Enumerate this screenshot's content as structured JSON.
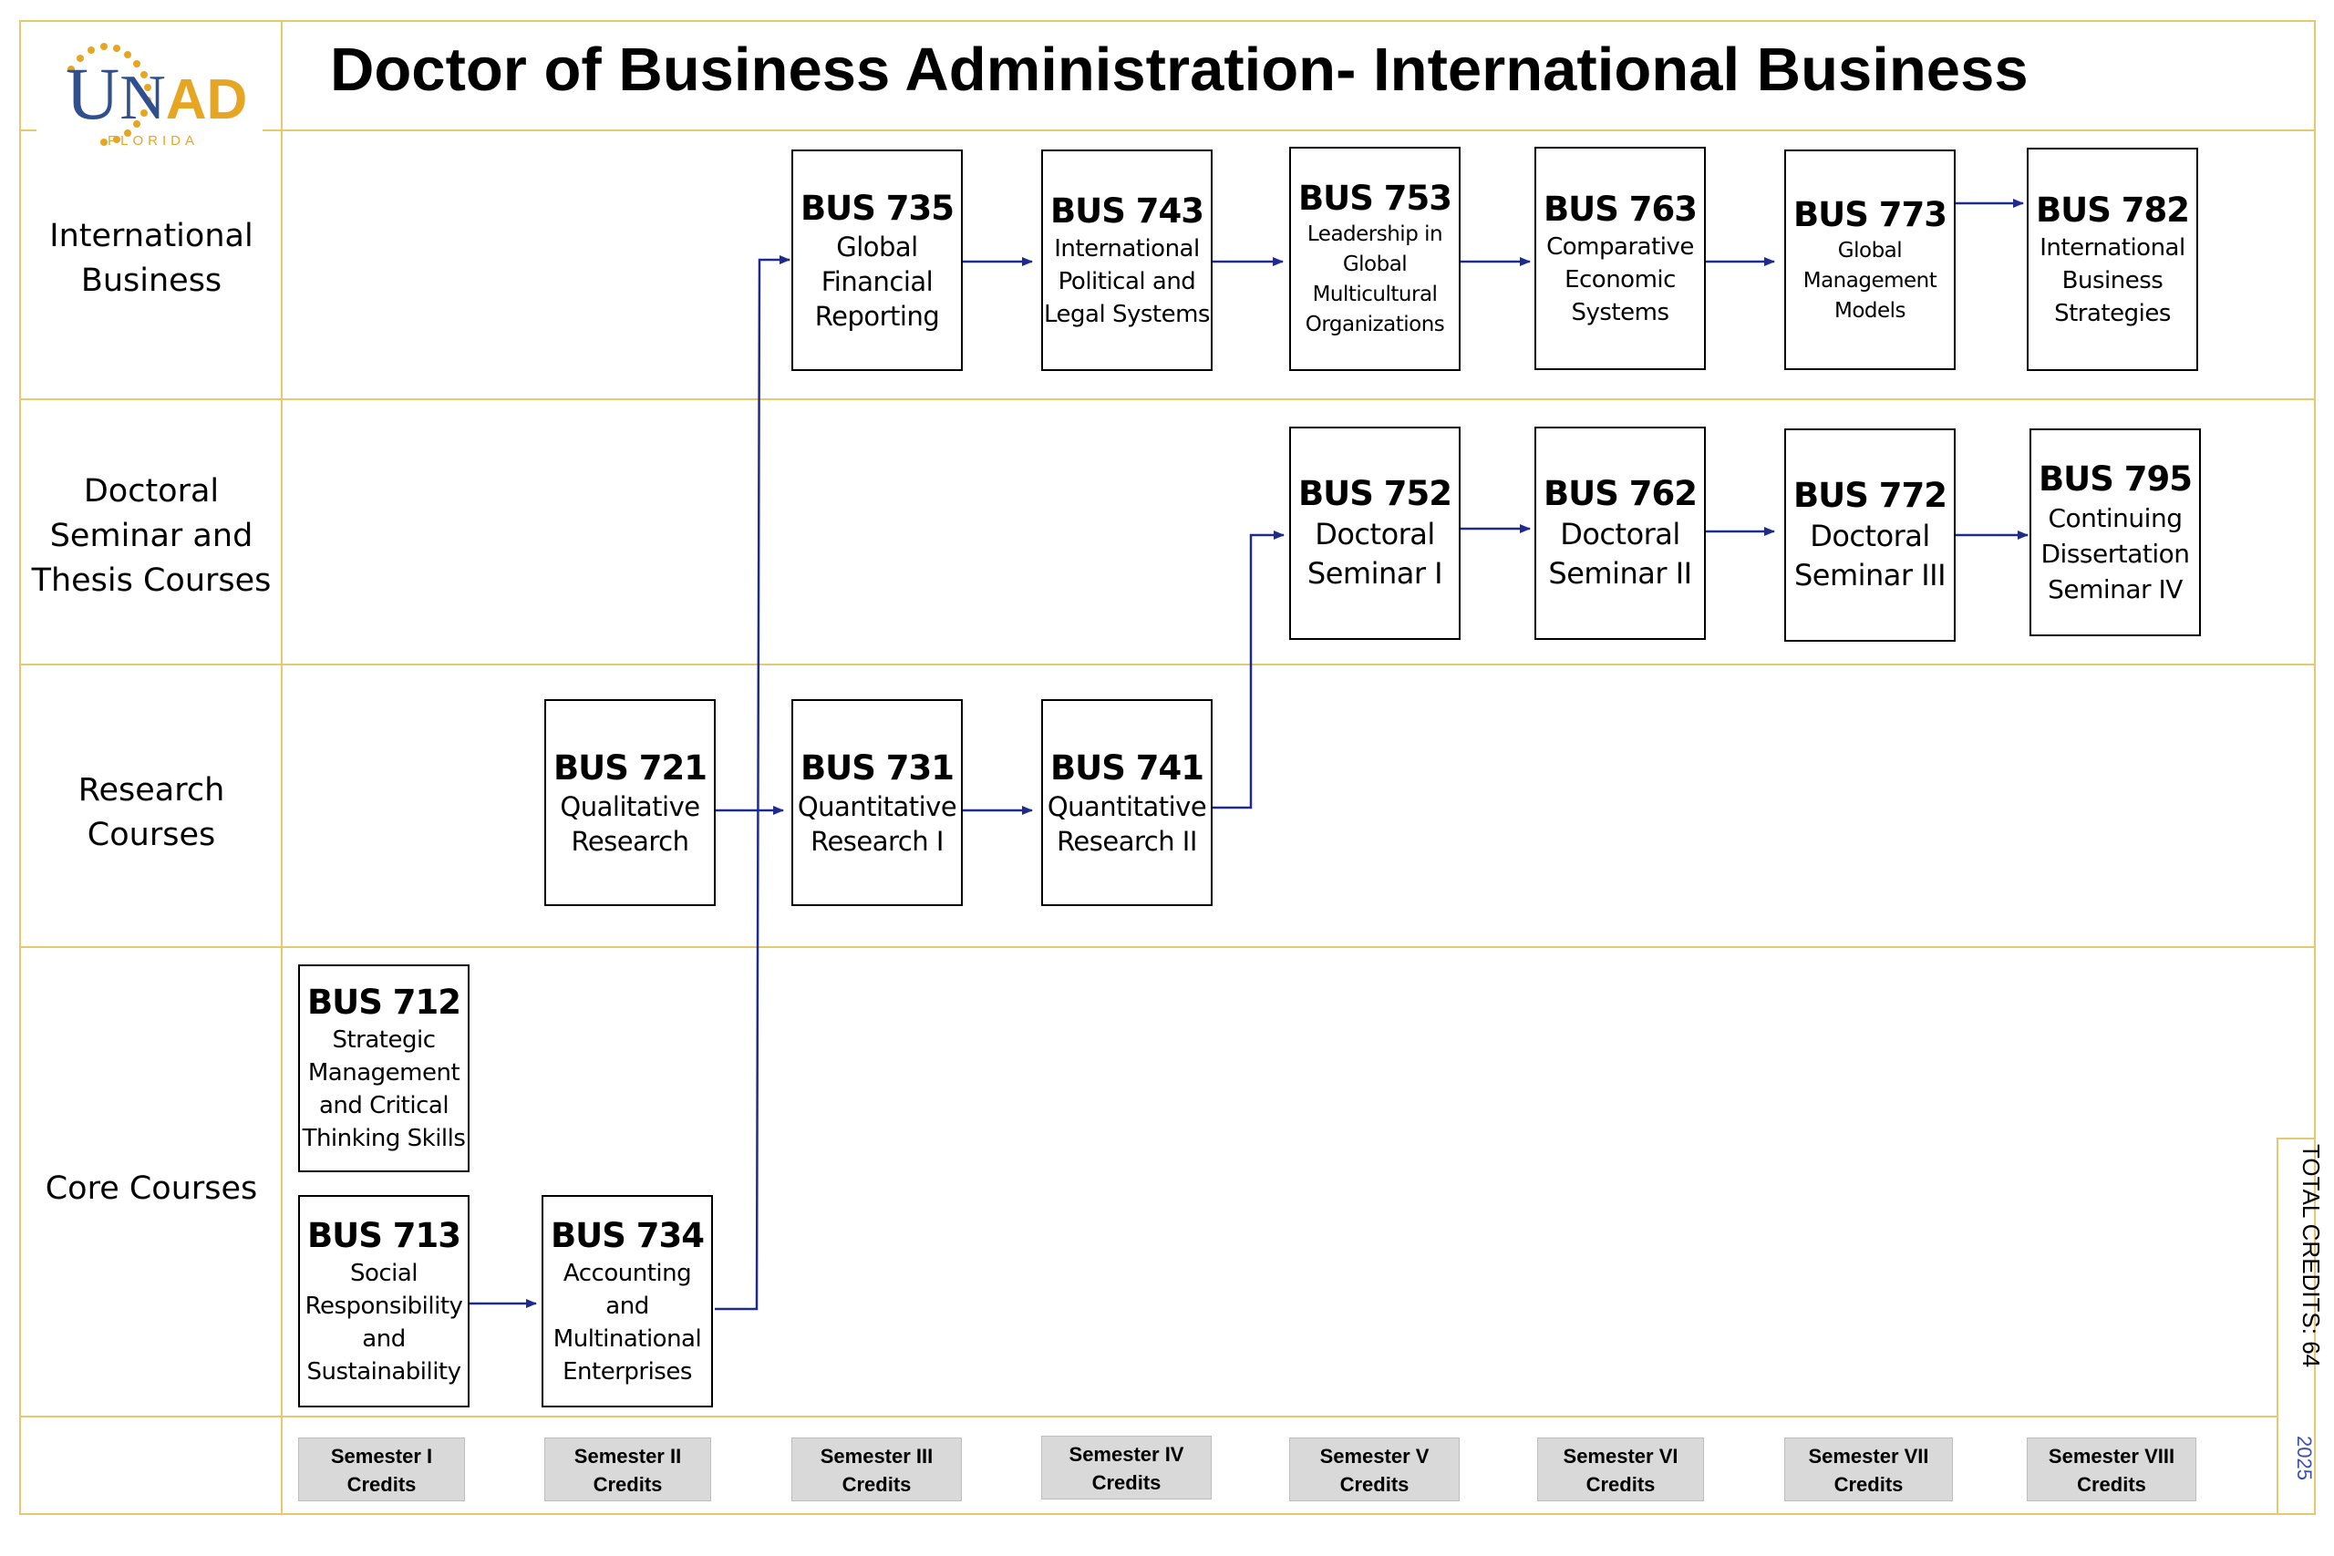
{
  "logo": {
    "main": "UNAD",
    "sub": "FLORIDA",
    "colors": {
      "u": "#2f4f8f",
      "ad": "#e6a623",
      "dots": "#e6a623"
    }
  },
  "title": "Doctor of Business Administration- International Business",
  "rows": {
    "international": "International\nBusiness",
    "doctoral": "Doctoral\nSeminar and\nThesis Courses",
    "research": "Research\nCourses",
    "core": "Core Courses"
  },
  "courses": {
    "bus735": {
      "code": "BUS 735",
      "name": "Global\nFinancial\nReporting"
    },
    "bus743": {
      "code": "BUS 743",
      "name": "International\nPolitical and\nLegal Systems"
    },
    "bus753": {
      "code": "BUS 753",
      "name": "Leadership in\nGlobal\nMulticultural\nOrganizations"
    },
    "bus763": {
      "code": "BUS 763",
      "name": "Comparative\nEconomic\nSystems"
    },
    "bus773": {
      "code": "BUS 773",
      "name": "Global\nManagement\nModels"
    },
    "bus782": {
      "code": "BUS 782",
      "name": "International\nBusiness\nStrategies"
    },
    "bus752": {
      "code": "BUS 752",
      "name": "Doctoral\nSeminar I"
    },
    "bus762": {
      "code": "BUS 762",
      "name": "Doctoral\nSeminar II"
    },
    "bus772": {
      "code": "BUS 772",
      "name": "Doctoral\nSeminar III"
    },
    "bus795": {
      "code": "BUS 795",
      "name": "Continuing\nDissertation\nSeminar IV"
    },
    "bus721": {
      "code": "BUS 721",
      "name": "Qualitative\nResearch"
    },
    "bus731": {
      "code": "BUS 731",
      "name": "Quantitative\nResearch I"
    },
    "bus741": {
      "code": "BUS 741",
      "name": "Quantitative\nResearch II"
    },
    "bus712": {
      "code": "BUS 712",
      "name": "Strategic\nManagement\nand Critical\nThinking Skills"
    },
    "bus713": {
      "code": "BUS 713",
      "name": "Social\nResponsibility\nand\nSustainability"
    },
    "bus734": {
      "code": "BUS 734",
      "name": "Accounting\nand\nMultinational\nEnterprises"
    }
  },
  "semesters": [
    {
      "label": "Semester I",
      "credits": "Credits"
    },
    {
      "label": "Semester II",
      "credits": "Credits"
    },
    {
      "label": "Semester III",
      "credits": "Credits"
    },
    {
      "label": "Semester IV",
      "credits": "Credits"
    },
    {
      "label": "Semester V",
      "credits": "Credits"
    },
    {
      "label": "Semester VI",
      "credits": "Credits"
    },
    {
      "label": "Semester VII",
      "credits": "Credits"
    },
    {
      "label": "Semester VIII",
      "credits": "Credits"
    }
  ],
  "total_credits": "TOTAL CREDITS: 64",
  "year": "2025",
  "colors": {
    "grid": "#e6c86e",
    "arrow": "#1f2a8f",
    "semester_fill": "#d9d9d9"
  }
}
